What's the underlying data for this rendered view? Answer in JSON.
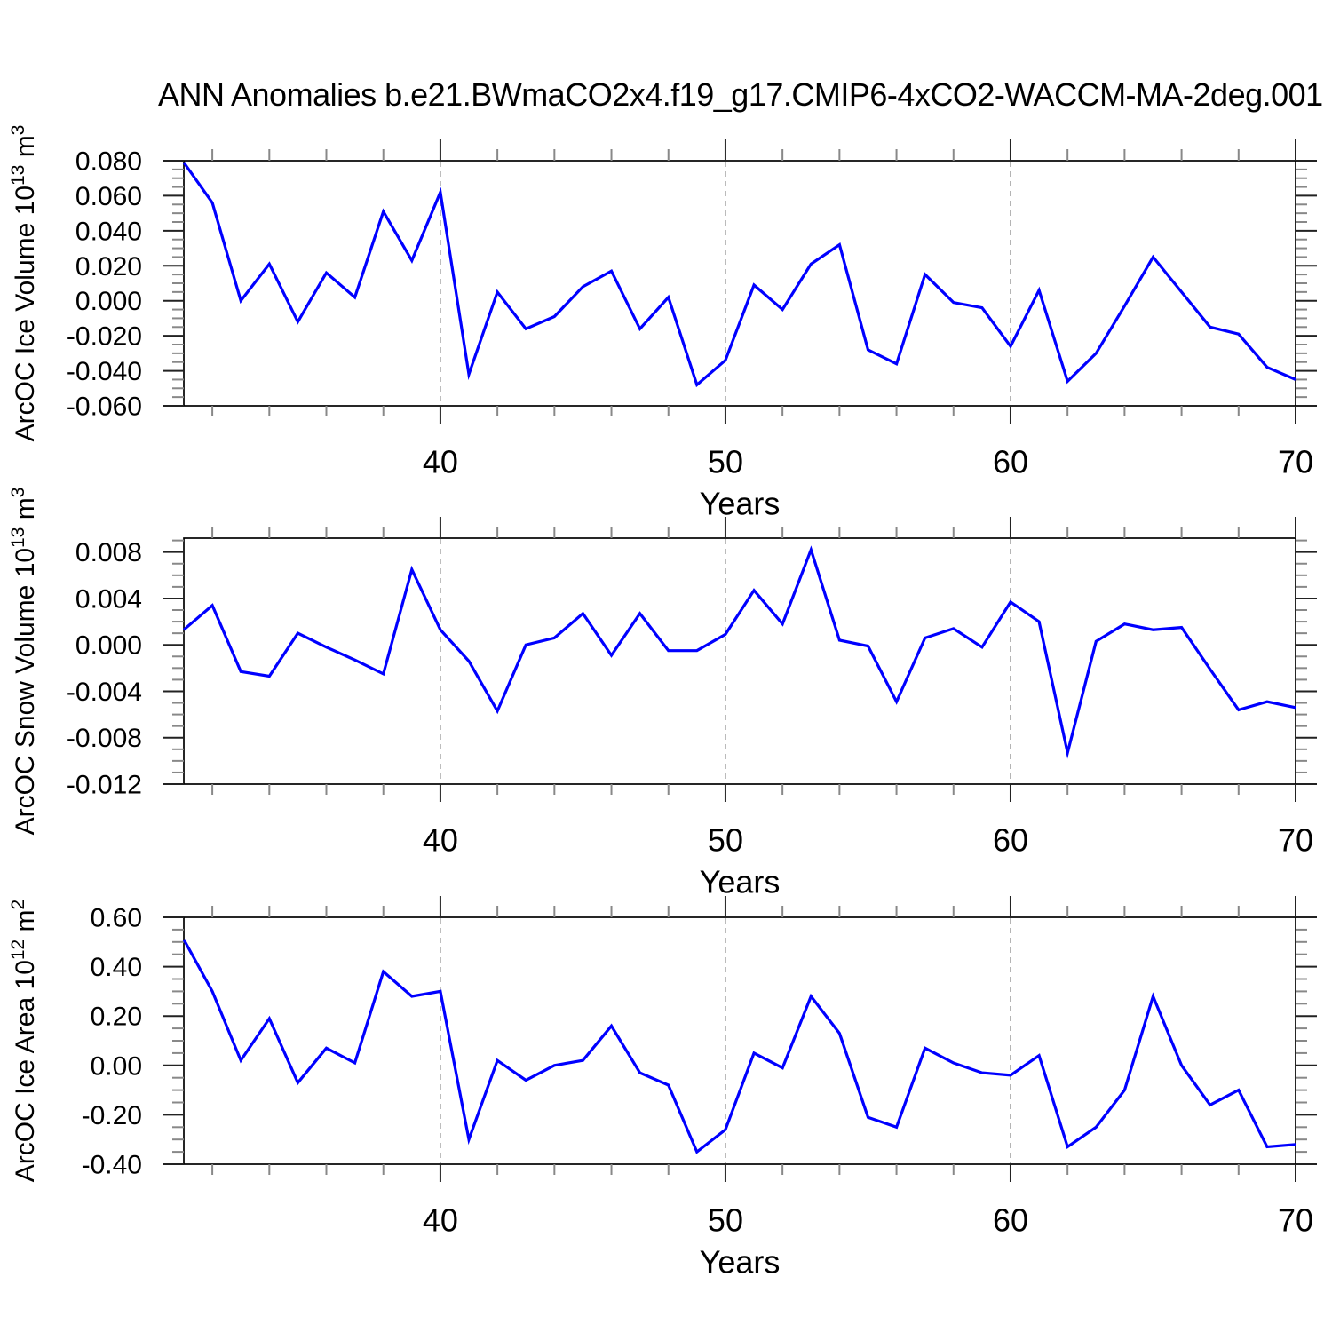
{
  "title": "ANN Anomalies b.e21.BWmaCO2x4.f19_g17.CMIP6-4xCO2-WACCM-MA-2deg.001",
  "colors": {
    "line": "#0000ff",
    "frame": "#000000",
    "grid": "#aaaaaa",
    "tick_major": "#222222",
    "tick_minor": "#888888",
    "text": "#000000"
  },
  "chart_data": [
    {
      "id": "ice-volume",
      "type": "line",
      "ylabel_text": "ArcOC Ice Volume 10^13 m^3",
      "ylabel_parts": [
        {
          "t": "ArcOC Ice Volume 10"
        },
        {
          "t": "13",
          "sup": true
        },
        {
          "t": " m"
        },
        {
          "t": "3",
          "sup": true
        }
      ],
      "xlabel": "Years",
      "xlim": [
        31,
        70
      ],
      "ylim": [
        -0.06,
        0.08
      ],
      "x": [
        31,
        32,
        33,
        34,
        35,
        36,
        37,
        38,
        39,
        40,
        41,
        42,
        43,
        44,
        45,
        46,
        47,
        48,
        49,
        50,
        51,
        52,
        53,
        54,
        55,
        56,
        57,
        58,
        59,
        60,
        61,
        62,
        63,
        64,
        65,
        66,
        67,
        68,
        69,
        70
      ],
      "values": [
        0.079,
        0.056,
        0.0,
        0.021,
        -0.012,
        0.016,
        0.002,
        0.051,
        0.023,
        0.062,
        -0.042,
        0.005,
        -0.016,
        -0.009,
        0.008,
        0.017,
        -0.016,
        0.002,
        -0.048,
        -0.034,
        0.009,
        -0.005,
        0.021,
        0.032,
        -0.028,
        -0.036,
        0.015,
        -0.001,
        -0.004,
        -0.026,
        0.006,
        -0.046,
        -0.03,
        -0.003,
        0.025,
        0.005,
        -0.015,
        -0.019,
        -0.038,
        -0.045
      ],
      "yticks": [
        0.08,
        0.06,
        0.04,
        0.02,
        0.0,
        -0.02,
        -0.04,
        -0.06
      ],
      "ytick_labels": [
        "0.080",
        "0.060",
        "0.040",
        "0.020",
        "0.000",
        "-0.020",
        "-0.040",
        "-0.060"
      ],
      "yminor_step": 0.005,
      "xticks": [
        40,
        50,
        60,
        70
      ],
      "xtick_labels": [
        "40",
        "50",
        "60",
        "70"
      ],
      "xminor_step": 2,
      "grid_x": [
        40,
        50,
        60
      ]
    },
    {
      "id": "snow-volume",
      "type": "line",
      "ylabel_text": "ArcOC Snow Volume 10^13 m^3",
      "ylabel_parts": [
        {
          "t": "ArcOC Snow Volume 10"
        },
        {
          "t": "13",
          "sup": true
        },
        {
          "t": " m"
        },
        {
          "t": "3",
          "sup": true
        }
      ],
      "xlabel": "Years",
      "xlim": [
        31,
        70
      ],
      "ylim": [
        -0.012,
        0.0092
      ],
      "x": [
        31,
        32,
        33,
        34,
        35,
        36,
        37,
        38,
        39,
        40,
        41,
        42,
        43,
        44,
        45,
        46,
        47,
        48,
        49,
        50,
        51,
        52,
        53,
        54,
        55,
        56,
        57,
        58,
        59,
        60,
        61,
        62,
        63,
        64,
        65,
        66,
        67,
        68,
        69,
        70
      ],
      "values": [
        0.0013,
        0.0034,
        -0.0023,
        -0.0027,
        0.001,
        -0.0002,
        -0.0013,
        -0.0025,
        0.0065,
        0.0013,
        -0.0014,
        -0.0057,
        0.0,
        0.0006,
        0.0027,
        -0.0009,
        0.0027,
        -0.0005,
        -0.0005,
        0.0009,
        0.0047,
        0.0018,
        0.0082,
        0.0004,
        -0.0001,
        -0.0049,
        0.0006,
        0.0014,
        -0.0002,
        0.0037,
        0.002,
        -0.0093,
        0.0003,
        0.0018,
        0.0013,
        0.0015,
        -0.0021,
        -0.0056,
        -0.0049,
        -0.0054
      ],
      "yticks": [
        0.008,
        0.004,
        0.0,
        -0.004,
        -0.008,
        -0.012
      ],
      "ytick_labels": [
        "0.008",
        "0.004",
        "0.000",
        "-0.004",
        "-0.008",
        "-0.012"
      ],
      "yminor_step": 0.001,
      "xticks": [
        40,
        50,
        60,
        70
      ],
      "xtick_labels": [
        "40",
        "50",
        "60",
        "70"
      ],
      "xminor_step": 2,
      "grid_x": [
        40,
        50,
        60
      ]
    },
    {
      "id": "ice-area",
      "type": "line",
      "ylabel_text": "ArcOC Ice Area 10^12 m^2",
      "ylabel_parts": [
        {
          "t": "ArcOC Ice Area 10"
        },
        {
          "t": "12",
          "sup": true
        },
        {
          "t": " m"
        },
        {
          "t": "2",
          "sup": true
        }
      ],
      "xlabel": "Years",
      "xlim": [
        31,
        70
      ],
      "ylim": [
        -0.4,
        0.6
      ],
      "x": [
        31,
        32,
        33,
        34,
        35,
        36,
        37,
        38,
        39,
        40,
        41,
        42,
        43,
        44,
        45,
        46,
        47,
        48,
        49,
        50,
        51,
        52,
        53,
        54,
        55,
        56,
        57,
        58,
        59,
        60,
        61,
        62,
        63,
        64,
        65,
        66,
        67,
        68,
        69,
        70
      ],
      "values": [
        0.51,
        0.3,
        0.02,
        0.19,
        -0.07,
        0.07,
        0.01,
        0.38,
        0.28,
        0.3,
        -0.3,
        0.02,
        -0.06,
        0.0,
        0.02,
        0.16,
        -0.03,
        -0.08,
        -0.35,
        -0.26,
        0.05,
        -0.01,
        0.28,
        0.13,
        -0.21,
        -0.25,
        0.07,
        0.01,
        -0.03,
        -0.04,
        0.04,
        -0.33,
        -0.25,
        -0.1,
        0.28,
        0.0,
        -0.16,
        -0.1,
        -0.33,
        -0.32
      ],
      "yticks": [
        0.6,
        0.4,
        0.2,
        0.0,
        -0.2,
        -0.4
      ],
      "ytick_labels": [
        "0.60",
        "0.40",
        "0.20",
        "0.00",
        "-0.20",
        "-0.40"
      ],
      "yminor_step": 0.05,
      "xticks": [
        40,
        50,
        60,
        70
      ],
      "xtick_labels": [
        "40",
        "50",
        "60",
        "70"
      ],
      "xminor_step": 2,
      "grid_x": [
        40,
        50,
        60
      ]
    }
  ]
}
